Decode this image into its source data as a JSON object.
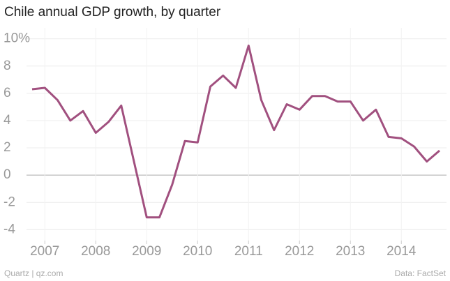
{
  "chart_data": {
    "type": "line",
    "title": "Chile annual GDP growth, by quarter",
    "categories": [
      null,
      "2007",
      null,
      null,
      null,
      "2008",
      null,
      null,
      null,
      "2009",
      null,
      null,
      null,
      "2010",
      null,
      null,
      null,
      "2011",
      null,
      null,
      null,
      "2012",
      null,
      null,
      null,
      "2013",
      null,
      null,
      null,
      "2014",
      null,
      null,
      null
    ],
    "series": [
      {
        "name": "GDP growth",
        "color": "#a1507f",
        "values": [
          6.3,
          6.4,
          5.5,
          4.0,
          4.7,
          3.1,
          3.9,
          5.1,
          1.0,
          -3.1,
          -3.1,
          -0.7,
          2.5,
          2.4,
          6.5,
          7.3,
          6.4,
          9.5,
          5.5,
          3.3,
          5.2,
          4.8,
          5.8,
          5.8,
          5.4,
          5.4,
          4.0,
          4.8,
          2.8,
          2.7,
          2.1,
          1.0,
          1.8
        ]
      }
    ],
    "ylim": [
      -4.8,
      10.8
    ],
    "yticks": [
      -4,
      -2,
      0,
      2,
      4,
      6,
      8,
      {
        "value": 10,
        "label": "10%"
      }
    ],
    "grid": true,
    "source_left": "Quartz | qz.com",
    "source_right": "Data: FactSet"
  }
}
